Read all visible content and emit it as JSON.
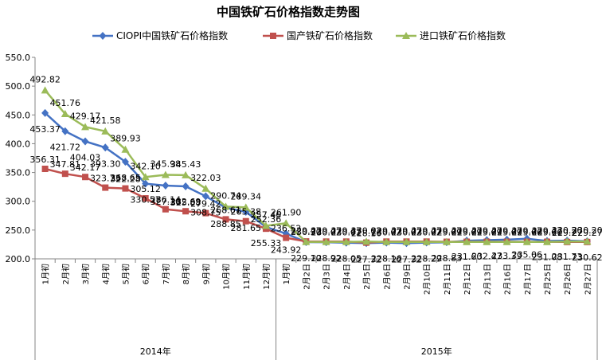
{
  "chart_data": {
    "type": "line",
    "title": "中国铁矿石价格指数走势图",
    "xlabel": "",
    "ylabel": "",
    "ylim": [
      200,
      550
    ],
    "yticks": [
      "200.0",
      "250.0",
      "300.0",
      "350.0",
      "400.0",
      "450.0",
      "500.0",
      "550.0"
    ],
    "categories": [
      "1月初",
      "2月初",
      "3月初",
      "4月初",
      "5月初",
      "6月初",
      "7月初",
      "8月初",
      "9月初",
      "10月初",
      "11月初",
      "12月初",
      "1月初",
      "2月2日",
      "2月3日",
      "2月4日",
      "2月5日",
      "2月6日",
      "2月9日",
      "2月10日",
      "2月11日",
      "2月12日",
      "2月13日",
      "2月16日",
      "2月17日",
      "2月25日",
      "2月26日",
      "2月27日"
    ],
    "groups": [
      {
        "label": "2014年",
        "start": 0,
        "end": 11
      },
      {
        "label": "2015年",
        "start": 12,
        "end": 27
      }
    ],
    "legend_position": "top",
    "grid": false,
    "series": [
      {
        "name": "CIOPI中国铁矿石价格指数",
        "color": "#4472C4",
        "marker": "diamond",
        "values": [
          453.37,
          421.72,
          404.03,
          393.3,
          368.65,
          330.57,
          327.3,
          325.88,
          308.75,
          288.85,
          281.65,
          255.33,
          243.92,
          229.1,
          228.92,
          228.05,
          227.32,
          228.16,
          227.32,
          228.29,
          228.83,
          231.6,
          232.47,
          233.39,
          235.06,
          231.08,
          231.73,
          230.62
        ],
        "labels": [
          "453.37",
          "421.72",
          "404.03",
          "393.30",
          "368.65",
          "330.57",
          "327.30",
          "325.88",
          "308.75",
          "288.85",
          "281.65",
          "255.33",
          "243.92",
          "229.10",
          "228.92",
          "228.05",
          "227.32",
          "228.16",
          "227.32",
          "228.29",
          "228.83",
          "231.60",
          "232.47",
          "233.39",
          "235.06",
          "231.08",
          "231.73",
          "230.62"
        ]
      },
      {
        "name": "国产铁矿石价格指数",
        "color": "#C0504D",
        "marker": "square",
        "values": [
          356.31,
          347.81,
          342.17,
          323.73,
          322.28,
          305.12,
          286.14,
          282.69,
          279.42,
          268.61,
          265.38,
          252.36,
          236.52,
          230.3,
          230.02,
          230.02,
          228.16,
          230.02,
          230.02,
          230.02,
          229.69,
          229.69,
          229.69,
          229.69,
          229.66,
          229.66,
          229.27,
          229.27
        ],
        "labels": [
          "356.31",
          "347.81",
          "342.17",
          "323.73",
          "322.28",
          "305.12",
          "286.14",
          "282.69",
          "279.42",
          "268.61",
          "265.38",
          "252.36",
          "236.52",
          "230.30",
          "230.02",
          "230.02",
          "228.16",
          "230.02",
          "230.02",
          "230.02",
          "229.69",
          "229.69",
          "229.69",
          "229.69",
          "229.66",
          "229.66",
          "229.27",
          "229.27"
        ]
      },
      {
        "name": "进口铁矿石价格指数",
        "color": "#9BBB59",
        "marker": "triangle",
        "values": [
          492.82,
          451.76,
          429.17,
          421.58,
          389.93,
          342.1,
          345.98,
          345.43,
          322.03,
          290.74,
          289.34,
          257.46,
          261.9,
          229.47,
          229.47,
          229.47,
          230.02,
          229.47,
          229.47,
          229.47,
          229.47,
          229.47,
          229.47,
          229.47,
          229.47,
          229.47,
          230.2,
          230.2
        ],
        "labels": [
          "492.82",
          "451.76",
          "429.17",
          "421.58",
          "389.93",
          "342.10",
          "345.98",
          "345.43",
          "322.03",
          "290.74",
          "289.34",
          "257.46",
          "261.90",
          "229.47",
          "229.47",
          "229.47",
          "230.02",
          "229.47",
          "229.47",
          "229.47",
          "229.47",
          "229.47",
          "229.47",
          "229.47",
          "229.47",
          "229.47",
          "230.20",
          "230.20"
        ]
      }
    ]
  }
}
